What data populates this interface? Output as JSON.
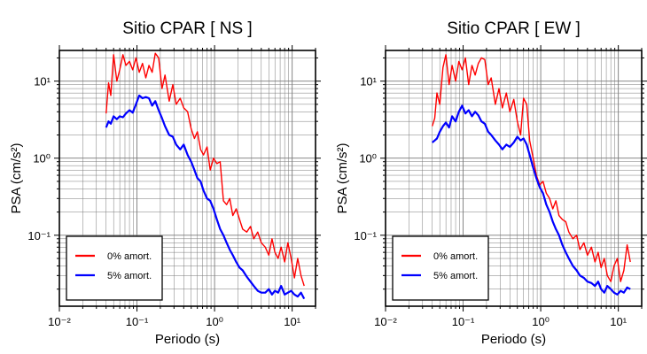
{
  "chart_data": [
    {
      "type": "line",
      "title": "Sitio CPAR [ NS ]",
      "xlabel": "Periodo (s)",
      "ylabel": "PSA (cm/s²)",
      "xscale": "log",
      "yscale": "log",
      "xlim": [
        0.01,
        20
      ],
      "ylim": [
        0.012,
        25
      ],
      "grid": true,
      "legend_position": "bottom-left",
      "x_ticks": [
        "10⁻²",
        "10⁻¹",
        "10⁰",
        "10¹"
      ],
      "y_ticks": [
        "10⁻¹",
        "10⁰",
        "10¹"
      ],
      "series": [
        {
          "name": "0% amort.",
          "color": "#ff0000",
          "x": [
            0.04,
            0.043,
            0.046,
            0.05,
            0.055,
            0.06,
            0.066,
            0.072,
            0.08,
            0.088,
            0.097,
            0.107,
            0.118,
            0.13,
            0.143,
            0.157,
            0.172,
            0.19,
            0.21,
            0.23,
            0.26,
            0.29,
            0.32,
            0.36,
            0.4,
            0.45,
            0.5,
            0.55,
            0.6,
            0.66,
            0.72,
            0.8,
            0.88,
            0.97,
            1.07,
            1.18,
            1.3,
            1.43,
            1.57,
            1.72,
            1.9,
            2.1,
            2.3,
            2.6,
            2.9,
            3.2,
            3.6,
            4.0,
            4.5,
            5.0,
            5.5,
            6.0,
            6.6,
            7.2,
            8.0,
            8.8,
            9.7,
            10.7,
            11.8,
            13.0,
            14.3
          ],
          "values": [
            3.8,
            9.5,
            6.5,
            22,
            10,
            14,
            22,
            16,
            18,
            14,
            20,
            13,
            17,
            11,
            16,
            13,
            23,
            20,
            8,
            12,
            5.5,
            9,
            5,
            6,
            4.5,
            4,
            2.4,
            1.8,
            2.2,
            1.3,
            1.1,
            1.4,
            0.7,
            1.0,
            0.85,
            0.9,
            0.28,
            0.25,
            0.3,
            0.18,
            0.22,
            0.16,
            0.12,
            0.11,
            0.13,
            0.09,
            0.11,
            0.08,
            0.07,
            0.055,
            0.09,
            0.06,
            0.05,
            0.07,
            0.045,
            0.08,
            0.05,
            0.028,
            0.05,
            0.03,
            0.022
          ]
        },
        {
          "name": "5% amort.",
          "color": "#0000ff",
          "x": [
            0.04,
            0.043,
            0.046,
            0.05,
            0.055,
            0.06,
            0.066,
            0.072,
            0.08,
            0.088,
            0.097,
            0.107,
            0.118,
            0.13,
            0.143,
            0.157,
            0.172,
            0.19,
            0.21,
            0.23,
            0.26,
            0.29,
            0.32,
            0.36,
            0.4,
            0.45,
            0.5,
            0.55,
            0.6,
            0.66,
            0.72,
            0.8,
            0.88,
            0.97,
            1.07,
            1.18,
            1.3,
            1.43,
            1.57,
            1.72,
            1.9,
            2.1,
            2.3,
            2.6,
            2.9,
            3.2,
            3.6,
            4.0,
            4.5,
            5.0,
            5.5,
            6.0,
            6.6,
            7.2,
            8.0,
            8.8,
            9.7,
            10.7,
            11.8,
            13.0,
            14.3
          ],
          "values": [
            2.5,
            3.0,
            2.8,
            3.5,
            3.2,
            3.5,
            3.4,
            3.8,
            4.2,
            3.9,
            5.0,
            6.5,
            6.0,
            6.2,
            6.0,
            4.8,
            5.5,
            4.2,
            3.3,
            2.6,
            2.0,
            1.9,
            1.5,
            1.3,
            1.5,
            1.1,
            0.9,
            0.7,
            0.55,
            0.5,
            0.38,
            0.3,
            0.28,
            0.22,
            0.16,
            0.12,
            0.1,
            0.08,
            0.065,
            0.055,
            0.045,
            0.038,
            0.035,
            0.029,
            0.025,
            0.022,
            0.019,
            0.018,
            0.018,
            0.02,
            0.017,
            0.019,
            0.018,
            0.022,
            0.017,
            0.018,
            0.019,
            0.017,
            0.016,
            0.018,
            0.015
          ]
        }
      ]
    },
    {
      "type": "line",
      "title": "Sitio CPAR [ EW ]",
      "xlabel": "Periodo (s)",
      "ylabel": "PSA (cm/s²)",
      "xscale": "log",
      "yscale": "log",
      "xlim": [
        0.01,
        20
      ],
      "ylim": [
        0.012,
        25
      ],
      "grid": true,
      "legend_position": "bottom-left",
      "x_ticks": [
        "10⁻²",
        "10⁻¹",
        "10⁰",
        "10¹"
      ],
      "y_ticks": [
        "10⁻¹",
        "10⁰",
        "10¹"
      ],
      "series": [
        {
          "name": "0% amort.",
          "color": "#ff0000",
          "x": [
            0.04,
            0.043,
            0.046,
            0.05,
            0.055,
            0.06,
            0.066,
            0.072,
            0.08,
            0.088,
            0.097,
            0.107,
            0.118,
            0.13,
            0.143,
            0.157,
            0.172,
            0.19,
            0.21,
            0.23,
            0.26,
            0.29,
            0.32,
            0.36,
            0.4,
            0.45,
            0.5,
            0.55,
            0.6,
            0.66,
            0.72,
            0.8,
            0.88,
            0.97,
            1.07,
            1.18,
            1.3,
            1.43,
            1.57,
            1.72,
            1.9,
            2.1,
            2.3,
            2.6,
            2.9,
            3.2,
            3.6,
            4.0,
            4.5,
            5.0,
            5.5,
            6.0,
            6.6,
            7.2,
            8.0,
            8.8,
            9.7,
            10.7,
            11.8,
            13.0,
            14.3
          ],
          "values": [
            2.6,
            3.3,
            7.0,
            5.0,
            15,
            22,
            9,
            16,
            10,
            18,
            14,
            20,
            9,
            16,
            12,
            17,
            20,
            19,
            9,
            11,
            5,
            8,
            4.5,
            7,
            4.0,
            5.8,
            3,
            2,
            6,
            5,
            1.7,
            1.0,
            0.6,
            0.45,
            0.5,
            0.35,
            0.3,
            0.22,
            0.28,
            0.18,
            0.16,
            0.15,
            0.11,
            0.09,
            0.1,
            0.065,
            0.08,
            0.055,
            0.07,
            0.045,
            0.06,
            0.038,
            0.05,
            0.03,
            0.025,
            0.04,
            0.05,
            0.025,
            0.035,
            0.075,
            0.045
          ]
        },
        {
          "name": "5% amort.",
          "color": "#0000ff",
          "x": [
            0.04,
            0.043,
            0.046,
            0.05,
            0.055,
            0.06,
            0.066,
            0.072,
            0.08,
            0.088,
            0.097,
            0.107,
            0.118,
            0.13,
            0.143,
            0.157,
            0.172,
            0.19,
            0.21,
            0.23,
            0.26,
            0.29,
            0.32,
            0.36,
            0.4,
            0.45,
            0.5,
            0.55,
            0.6,
            0.66,
            0.72,
            0.8,
            0.88,
            0.97,
            1.07,
            1.18,
            1.3,
            1.43,
            1.57,
            1.72,
            1.9,
            2.1,
            2.3,
            2.6,
            2.9,
            3.2,
            3.6,
            4.0,
            4.5,
            5.0,
            5.5,
            6.0,
            6.6,
            7.2,
            8.0,
            8.8,
            9.7,
            10.7,
            11.8,
            13.0,
            14.3
          ],
          "values": [
            1.6,
            1.7,
            1.8,
            2.2,
            2.6,
            2.9,
            2.5,
            3.5,
            3.0,
            4.0,
            4.8,
            3.8,
            4.2,
            3.5,
            4.0,
            3.6,
            3.0,
            2.8,
            2.2,
            2.0,
            1.7,
            1.5,
            1.3,
            1.5,
            1.4,
            1.6,
            1.9,
            1.7,
            1.8,
            1.5,
            1.1,
            0.75,
            0.55,
            0.42,
            0.35,
            0.25,
            0.2,
            0.15,
            0.12,
            0.1,
            0.075,
            0.06,
            0.05,
            0.04,
            0.035,
            0.03,
            0.028,
            0.025,
            0.024,
            0.022,
            0.025,
            0.02,
            0.018,
            0.022,
            0.02,
            0.018,
            0.017,
            0.019,
            0.018,
            0.021,
            0.02
          ]
        }
      ]
    }
  ]
}
